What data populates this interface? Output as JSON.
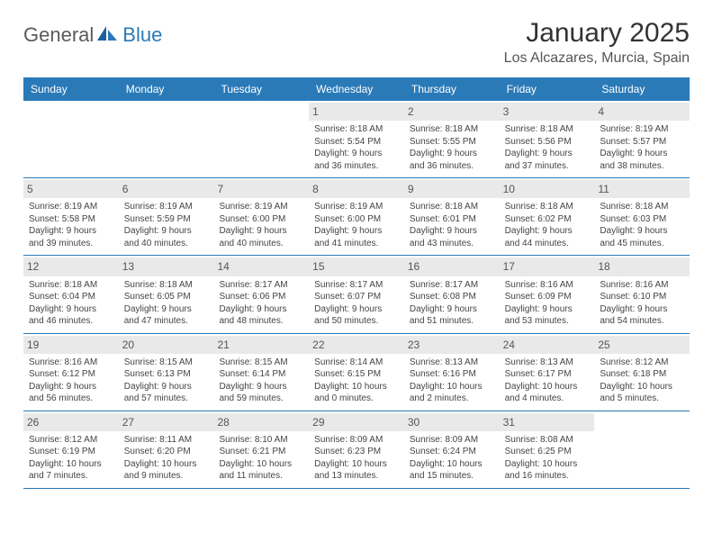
{
  "logo": {
    "part1": "General",
    "part2": "Blue"
  },
  "title": "January 2025",
  "location": "Los Alcazares, Murcia, Spain",
  "colors": {
    "header_bg": "#2a7ab8",
    "header_text": "#ffffff",
    "daynum_bg": "#e9e9e9",
    "row_border": "#2a7ab8",
    "body_text": "#444444"
  },
  "weekdays": [
    "Sunday",
    "Monday",
    "Tuesday",
    "Wednesday",
    "Thursday",
    "Friday",
    "Saturday"
  ],
  "weeks": [
    [
      {
        "n": "",
        "sr": "",
        "ss": "",
        "dl1": "",
        "dl2": "",
        "empty": true
      },
      {
        "n": "",
        "sr": "",
        "ss": "",
        "dl1": "",
        "dl2": "",
        "empty": true
      },
      {
        "n": "",
        "sr": "",
        "ss": "",
        "dl1": "",
        "dl2": "",
        "empty": true
      },
      {
        "n": "1",
        "sr": "Sunrise: 8:18 AM",
        "ss": "Sunset: 5:54 PM",
        "dl1": "Daylight: 9 hours",
        "dl2": "and 36 minutes."
      },
      {
        "n": "2",
        "sr": "Sunrise: 8:18 AM",
        "ss": "Sunset: 5:55 PM",
        "dl1": "Daylight: 9 hours",
        "dl2": "and 36 minutes."
      },
      {
        "n": "3",
        "sr": "Sunrise: 8:18 AM",
        "ss": "Sunset: 5:56 PM",
        "dl1": "Daylight: 9 hours",
        "dl2": "and 37 minutes."
      },
      {
        "n": "4",
        "sr": "Sunrise: 8:19 AM",
        "ss": "Sunset: 5:57 PM",
        "dl1": "Daylight: 9 hours",
        "dl2": "and 38 minutes."
      }
    ],
    [
      {
        "n": "5",
        "sr": "Sunrise: 8:19 AM",
        "ss": "Sunset: 5:58 PM",
        "dl1": "Daylight: 9 hours",
        "dl2": "and 39 minutes."
      },
      {
        "n": "6",
        "sr": "Sunrise: 8:19 AM",
        "ss": "Sunset: 5:59 PM",
        "dl1": "Daylight: 9 hours",
        "dl2": "and 40 minutes."
      },
      {
        "n": "7",
        "sr": "Sunrise: 8:19 AM",
        "ss": "Sunset: 6:00 PM",
        "dl1": "Daylight: 9 hours",
        "dl2": "and 40 minutes."
      },
      {
        "n": "8",
        "sr": "Sunrise: 8:19 AM",
        "ss": "Sunset: 6:00 PM",
        "dl1": "Daylight: 9 hours",
        "dl2": "and 41 minutes."
      },
      {
        "n": "9",
        "sr": "Sunrise: 8:18 AM",
        "ss": "Sunset: 6:01 PM",
        "dl1": "Daylight: 9 hours",
        "dl2": "and 43 minutes."
      },
      {
        "n": "10",
        "sr": "Sunrise: 8:18 AM",
        "ss": "Sunset: 6:02 PM",
        "dl1": "Daylight: 9 hours",
        "dl2": "and 44 minutes."
      },
      {
        "n": "11",
        "sr": "Sunrise: 8:18 AM",
        "ss": "Sunset: 6:03 PM",
        "dl1": "Daylight: 9 hours",
        "dl2": "and 45 minutes."
      }
    ],
    [
      {
        "n": "12",
        "sr": "Sunrise: 8:18 AM",
        "ss": "Sunset: 6:04 PM",
        "dl1": "Daylight: 9 hours",
        "dl2": "and 46 minutes."
      },
      {
        "n": "13",
        "sr": "Sunrise: 8:18 AM",
        "ss": "Sunset: 6:05 PM",
        "dl1": "Daylight: 9 hours",
        "dl2": "and 47 minutes."
      },
      {
        "n": "14",
        "sr": "Sunrise: 8:17 AM",
        "ss": "Sunset: 6:06 PM",
        "dl1": "Daylight: 9 hours",
        "dl2": "and 48 minutes."
      },
      {
        "n": "15",
        "sr": "Sunrise: 8:17 AM",
        "ss": "Sunset: 6:07 PM",
        "dl1": "Daylight: 9 hours",
        "dl2": "and 50 minutes."
      },
      {
        "n": "16",
        "sr": "Sunrise: 8:17 AM",
        "ss": "Sunset: 6:08 PM",
        "dl1": "Daylight: 9 hours",
        "dl2": "and 51 minutes."
      },
      {
        "n": "17",
        "sr": "Sunrise: 8:16 AM",
        "ss": "Sunset: 6:09 PM",
        "dl1": "Daylight: 9 hours",
        "dl2": "and 53 minutes."
      },
      {
        "n": "18",
        "sr": "Sunrise: 8:16 AM",
        "ss": "Sunset: 6:10 PM",
        "dl1": "Daylight: 9 hours",
        "dl2": "and 54 minutes."
      }
    ],
    [
      {
        "n": "19",
        "sr": "Sunrise: 8:16 AM",
        "ss": "Sunset: 6:12 PM",
        "dl1": "Daylight: 9 hours",
        "dl2": "and 56 minutes."
      },
      {
        "n": "20",
        "sr": "Sunrise: 8:15 AM",
        "ss": "Sunset: 6:13 PM",
        "dl1": "Daylight: 9 hours",
        "dl2": "and 57 minutes."
      },
      {
        "n": "21",
        "sr": "Sunrise: 8:15 AM",
        "ss": "Sunset: 6:14 PM",
        "dl1": "Daylight: 9 hours",
        "dl2": "and 59 minutes."
      },
      {
        "n": "22",
        "sr": "Sunrise: 8:14 AM",
        "ss": "Sunset: 6:15 PM",
        "dl1": "Daylight: 10 hours",
        "dl2": "and 0 minutes."
      },
      {
        "n": "23",
        "sr": "Sunrise: 8:13 AM",
        "ss": "Sunset: 6:16 PM",
        "dl1": "Daylight: 10 hours",
        "dl2": "and 2 minutes."
      },
      {
        "n": "24",
        "sr": "Sunrise: 8:13 AM",
        "ss": "Sunset: 6:17 PM",
        "dl1": "Daylight: 10 hours",
        "dl2": "and 4 minutes."
      },
      {
        "n": "25",
        "sr": "Sunrise: 8:12 AM",
        "ss": "Sunset: 6:18 PM",
        "dl1": "Daylight: 10 hours",
        "dl2": "and 5 minutes."
      }
    ],
    [
      {
        "n": "26",
        "sr": "Sunrise: 8:12 AM",
        "ss": "Sunset: 6:19 PM",
        "dl1": "Daylight: 10 hours",
        "dl2": "and 7 minutes."
      },
      {
        "n": "27",
        "sr": "Sunrise: 8:11 AM",
        "ss": "Sunset: 6:20 PM",
        "dl1": "Daylight: 10 hours",
        "dl2": "and 9 minutes."
      },
      {
        "n": "28",
        "sr": "Sunrise: 8:10 AM",
        "ss": "Sunset: 6:21 PM",
        "dl1": "Daylight: 10 hours",
        "dl2": "and 11 minutes."
      },
      {
        "n": "29",
        "sr": "Sunrise: 8:09 AM",
        "ss": "Sunset: 6:23 PM",
        "dl1": "Daylight: 10 hours",
        "dl2": "and 13 minutes."
      },
      {
        "n": "30",
        "sr": "Sunrise: 8:09 AM",
        "ss": "Sunset: 6:24 PM",
        "dl1": "Daylight: 10 hours",
        "dl2": "and 15 minutes."
      },
      {
        "n": "31",
        "sr": "Sunrise: 8:08 AM",
        "ss": "Sunset: 6:25 PM",
        "dl1": "Daylight: 10 hours",
        "dl2": "and 16 minutes."
      },
      {
        "n": "",
        "sr": "",
        "ss": "",
        "dl1": "",
        "dl2": "",
        "empty": true
      }
    ]
  ]
}
